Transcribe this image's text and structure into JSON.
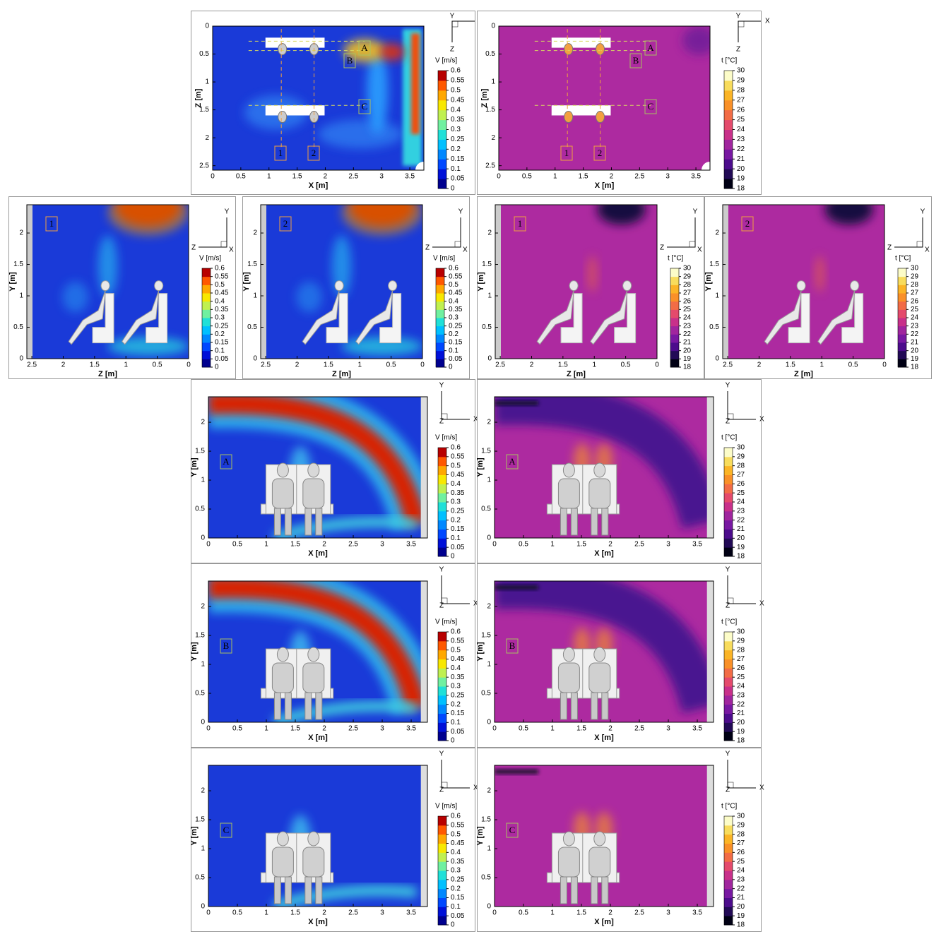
{
  "coordinate_axes": {
    "x": "X",
    "y": "Y",
    "z": "Z"
  },
  "sections": {
    "planes": [
      "A",
      "B",
      "C"
    ],
    "columns": [
      "1",
      "2"
    ]
  },
  "views": {
    "top": {
      "x_label": "X [m]",
      "y_label": "Z [m]",
      "xlim": [
        0,
        3.75
      ],
      "ylim": [
        0,
        2.58
      ],
      "xticks": [
        0,
        0.5,
        1,
        1.5,
        2,
        2.5,
        3,
        3.5
      ],
      "yticks": [
        0,
        0.5,
        1,
        1.5,
        2,
        2.5
      ]
    },
    "side": {
      "x_label": "Z [m]",
      "y_label": "Y [m]",
      "xlim": [
        2.58,
        0
      ],
      "ylim": [
        0,
        2.45
      ],
      "xticks": [
        2.5,
        2,
        1.5,
        1,
        0.5,
        0
      ],
      "yticks": [
        0,
        0.5,
        1,
        1.5,
        2
      ]
    },
    "front": {
      "x_label": "X [m]",
      "y_label": "Y [m]",
      "xlim": [
        0,
        3.78
      ],
      "ylim": [
        0,
        2.44
      ],
      "xticks": [
        0,
        0.5,
        1,
        1.5,
        2,
        2.5,
        3,
        3.5
      ],
      "yticks": [
        0,
        0.5,
        1,
        1.5,
        2
      ]
    }
  },
  "colorbars": {
    "velocity": {
      "title": "V [m/s]",
      "lim": [
        0,
        0.6
      ],
      "ticks": [
        0.6,
        0.55,
        0.5,
        0.45,
        0.4,
        0.35,
        0.3,
        0.25,
        0.2,
        0.15,
        0.1,
        0.05,
        0
      ]
    },
    "temperature": {
      "title": "t [°C]",
      "lim": [
        18,
        30
      ],
      "ticks": [
        30,
        29,
        28,
        27,
        26,
        25,
        24,
        23,
        22,
        21,
        20,
        19,
        18
      ]
    }
  }
}
